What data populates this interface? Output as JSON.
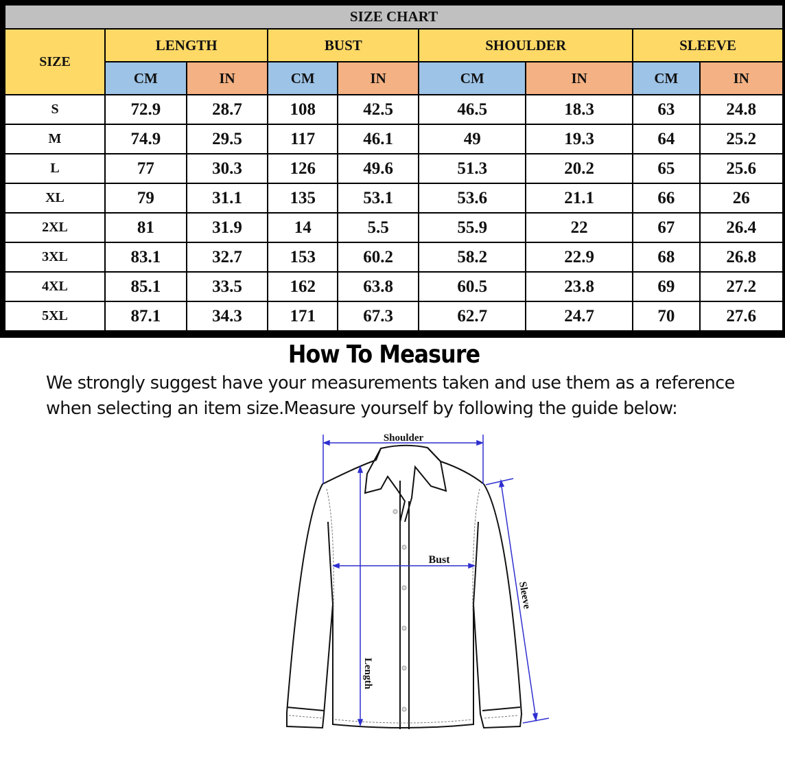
{
  "title": "SIZE CHART",
  "size_header": "SIZE",
  "groups": [
    "LENGTH",
    "BUST",
    "SHOULDER",
    "SLEEVE"
  ],
  "unit_cm": "CM",
  "unit_in": "IN",
  "colors": {
    "title_bg": "#c0c0c0",
    "group_bg": "#ffd966",
    "cm_bg": "#9dc3e6",
    "in_bg": "#f4b183",
    "arrow": "#2f2fd0"
  },
  "rows": [
    {
      "size": "S",
      "v": [
        "72.9",
        "28.7",
        "108",
        "42.5",
        "46.5",
        "18.3",
        "63",
        "24.8"
      ]
    },
    {
      "size": "M",
      "v": [
        "74.9",
        "29.5",
        "117",
        "46.1",
        "49",
        "19.3",
        "64",
        "25.2"
      ]
    },
    {
      "size": "L",
      "v": [
        "77",
        "30.3",
        "126",
        "49.6",
        "51.3",
        "20.2",
        "65",
        "25.6"
      ]
    },
    {
      "size": "XL",
      "v": [
        "79",
        "31.1",
        "135",
        "53.1",
        "53.6",
        "21.1",
        "66",
        "26"
      ]
    },
    {
      "size": "2XL",
      "v": [
        "81",
        "31.9",
        "14",
        "5.5",
        "55.9",
        "22",
        "67",
        "26.4"
      ]
    },
    {
      "size": "3XL",
      "v": [
        "83.1",
        "32.7",
        "153",
        "60.2",
        "58.2",
        "22.9",
        "68",
        "26.8"
      ]
    },
    {
      "size": "4XL",
      "v": [
        "85.1",
        "33.5",
        "162",
        "63.8",
        "60.5",
        "23.8",
        "69",
        "27.2"
      ]
    },
    {
      "size": "5XL",
      "v": [
        "87.1",
        "34.3",
        "171",
        "67.3",
        "62.7",
        "24.7",
        "70",
        "27.6"
      ]
    }
  ],
  "how_to": "How To Measure",
  "instructions": "We strongly suggest have your measurements taken and use them as a reference when selecting an item size.Measure yourself by following the guide below:",
  "diagram_labels": {
    "shoulder": "Shoulder",
    "bust": "Bust",
    "sleeve": "Sleeve",
    "length": "Length"
  }
}
